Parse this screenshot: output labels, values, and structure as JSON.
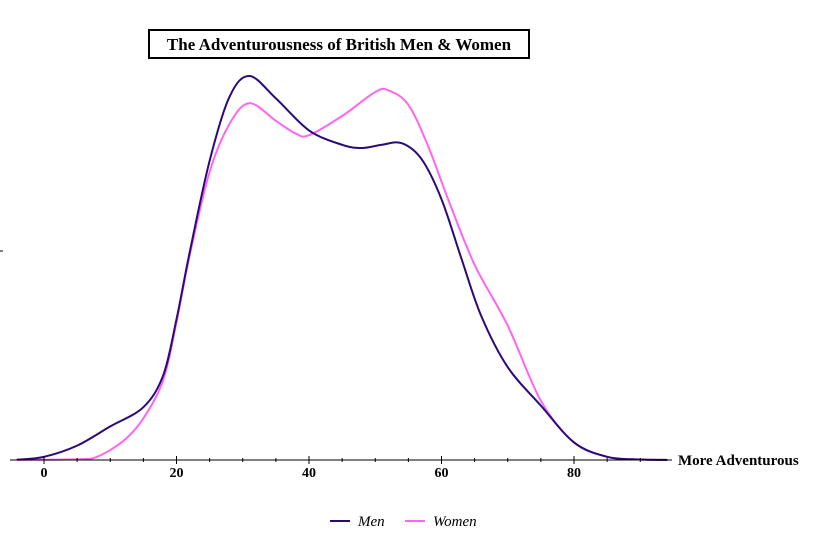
{
  "chart_data": {
    "type": "line",
    "title": "The Adventurousness of British Men & Women",
    "xlabel": "More Adventurous",
    "ylabel": "",
    "xlim": [
      -4,
      94
    ],
    "ylim": [
      0,
      0.0245
    ],
    "x_ticks": [
      0,
      20,
      40,
      60,
      80
    ],
    "x_tick_labels": [
      "0",
      "20",
      "40",
      "60",
      "80"
    ],
    "grid": false,
    "legend_position": "bottom-center",
    "series": [
      {
        "name": "Men",
        "color": "#2a0a7a",
        "x": [
          -4,
          0,
          5,
          10,
          15,
          18,
          20,
          22,
          25,
          28,
          31,
          35,
          40,
          45,
          48,
          51,
          54,
          57,
          60,
          63,
          66,
          70,
          75,
          80,
          85,
          90,
          94
        ],
        "y": [
          2e-05,
          0.0002,
          0.0009,
          0.0021,
          0.0033,
          0.0053,
          0.0088,
          0.013,
          0.0187,
          0.0227,
          0.024,
          0.0226,
          0.0206,
          0.0197,
          0.0195,
          0.0197,
          0.0198,
          0.0188,
          0.0163,
          0.0126,
          0.009,
          0.0058,
          0.0034,
          0.0011,
          0.0002,
          3e-05,
          1e-05
        ]
      },
      {
        "name": "Women",
        "color": "#ff66ee",
        "x": [
          -4,
          5,
          8,
          12,
          15,
          18,
          20,
          22,
          25,
          28,
          31,
          35,
          38,
          40,
          45,
          50,
          52,
          55,
          58,
          61,
          65,
          70,
          75,
          80,
          85,
          90,
          94
        ],
        "y": [
          1e-05,
          5e-05,
          0.0002,
          0.0012,
          0.0026,
          0.005,
          0.0086,
          0.0128,
          0.018,
          0.021,
          0.0223,
          0.0212,
          0.0204,
          0.0203,
          0.0215,
          0.023,
          0.0231,
          0.0222,
          0.0196,
          0.0163,
          0.0122,
          0.0084,
          0.0037,
          0.0011,
          0.0002,
          3e-05,
          1e-05
        ]
      }
    ]
  }
}
